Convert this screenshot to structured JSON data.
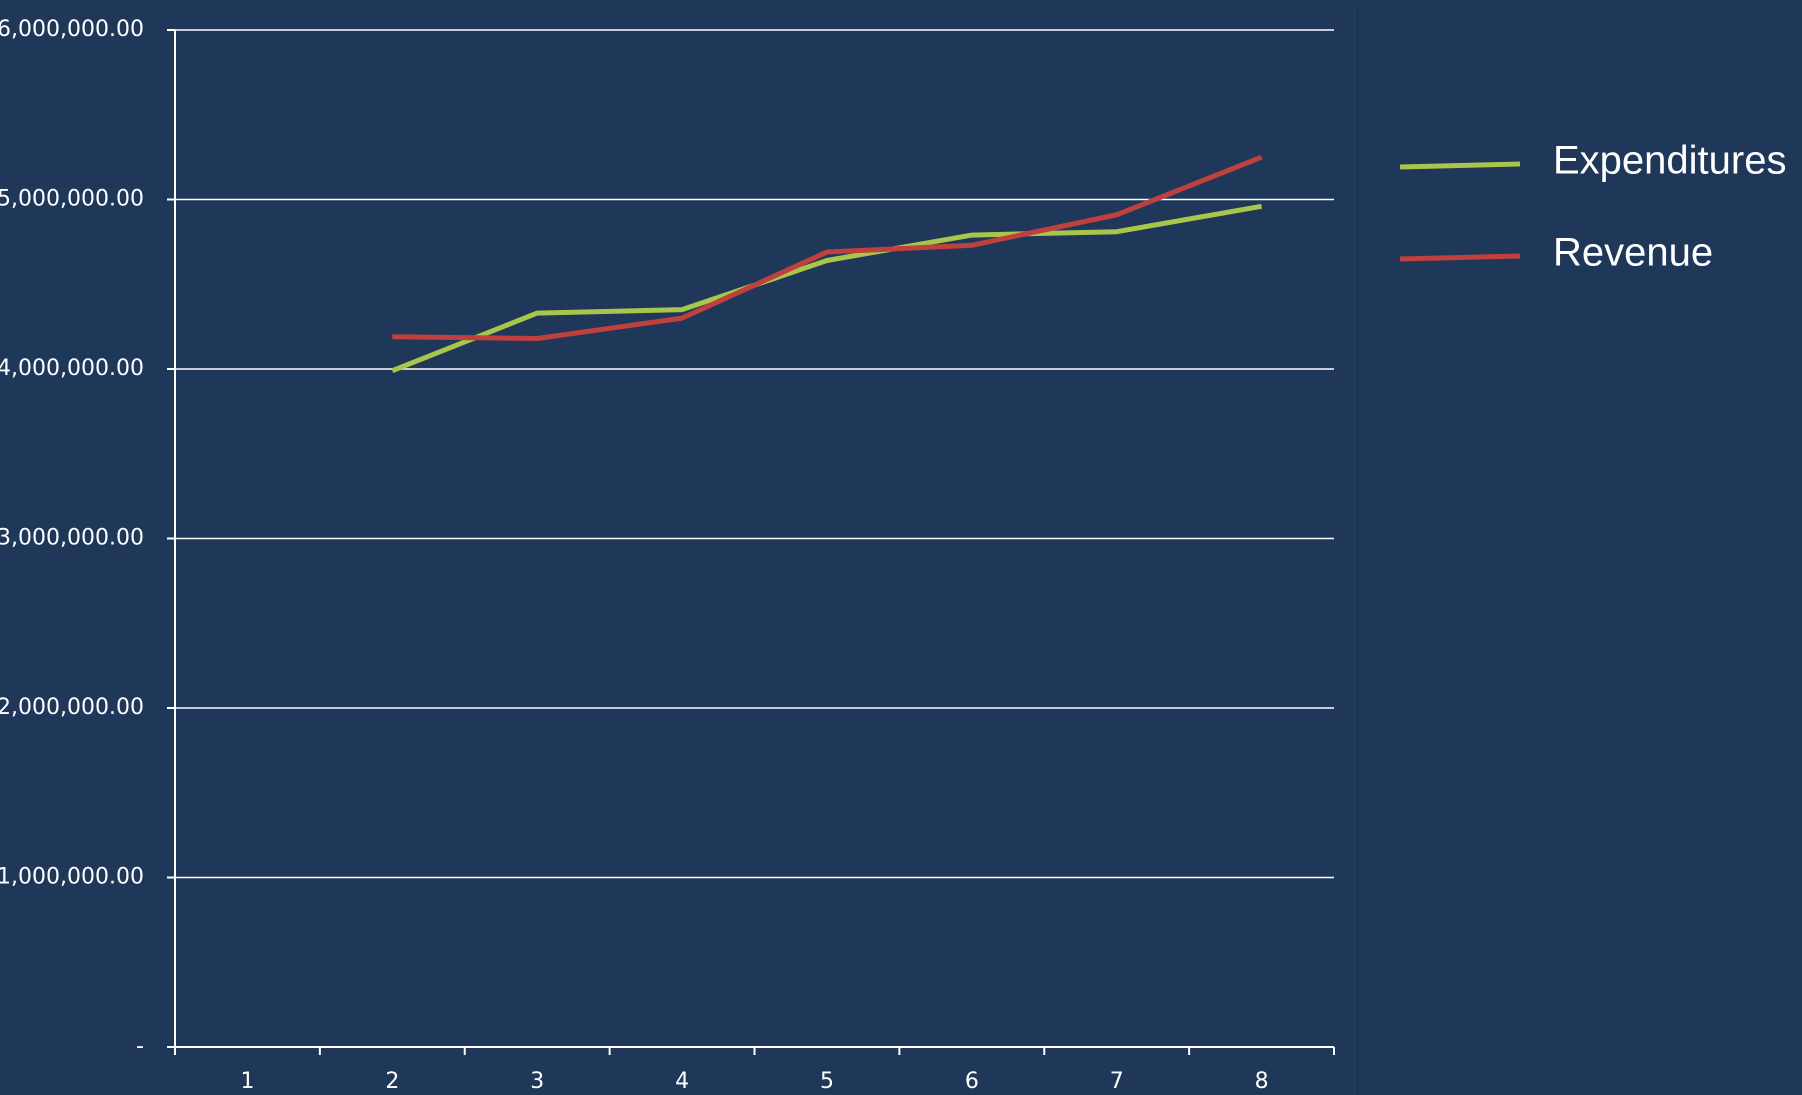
{
  "chart_data": {
    "type": "line",
    "categories": [
      "1",
      "2",
      "3",
      "4",
      "5",
      "6",
      "7",
      "8"
    ],
    "series": [
      {
        "name": "Expenditures",
        "color": "#a8c64c",
        "values": [
          null,
          3990000,
          4330000,
          4350000,
          4640000,
          4790000,
          4810000,
          4960000
        ]
      },
      {
        "name": "Revenue",
        "color": "#c0403e",
        "values": [
          null,
          4190000,
          4180000,
          4300000,
          4690000,
          4730000,
          4910000,
          5250000
        ]
      }
    ],
    "ylim": [
      0,
      6000000
    ],
    "yticks": [
      {
        "value": 0,
        "label": "-"
      },
      {
        "value": 1000000,
        "label": "1,000,000.00"
      },
      {
        "value": 2000000,
        "label": "2,000,000.00"
      },
      {
        "value": 3000000,
        "label": "3,000,000.00"
      },
      {
        "value": 4000000,
        "label": "4,000,000.00"
      },
      {
        "value": 5000000,
        "label": "5,000,000.00"
      },
      {
        "value": 6000000,
        "label": "6,000,000.00"
      }
    ],
    "grid": true,
    "legend": "right"
  }
}
